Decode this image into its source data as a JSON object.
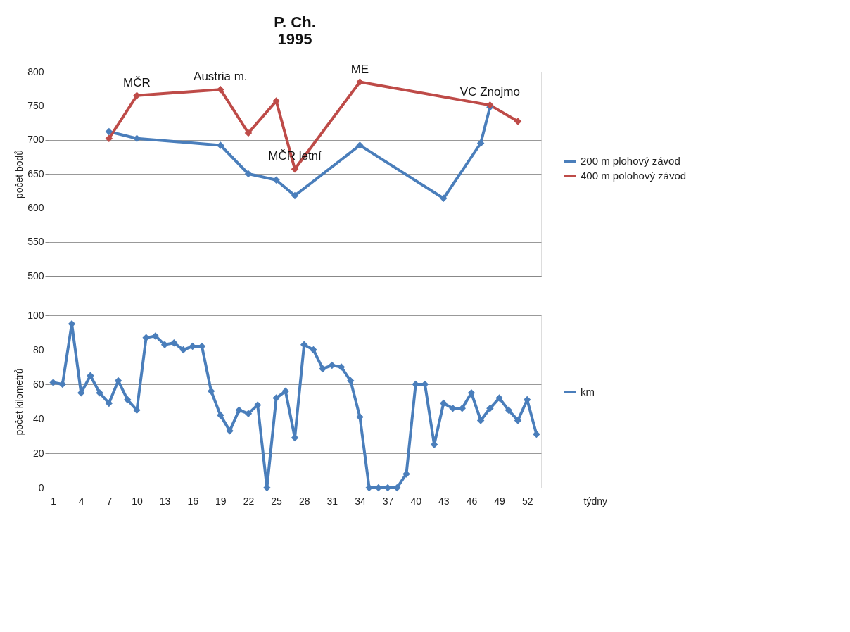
{
  "chart_data": [
    {
      "type": "line",
      "title": "P. Ch.\n1995",
      "ylabel": "počet bodů",
      "ylim": [
        500,
        800
      ],
      "yticks": [
        500,
        550,
        600,
        650,
        700,
        750,
        800
      ],
      "tick_labels": "y",
      "grid": "y",
      "legend": "right",
      "marker": "diamond",
      "line_style": "solid",
      "categories": [
        null,
        null,
        null,
        null,
        null,
        null,
        null,
        null,
        null,
        null,
        null,
        null,
        null,
        null,
        null,
        null,
        null,
        null,
        null,
        null,
        null,
        null,
        null,
        null,
        null,
        null,
        null,
        null,
        null,
        null,
        null,
        null,
        null,
        null,
        null,
        null,
        null,
        null,
        null,
        null,
        null,
        null,
        null,
        null,
        null,
        null,
        null,
        null,
        null,
        null,
        null,
        null,
        null
      ],
      "series": [
        {
          "name": "200 m plohový závod",
          "color": "#4a7ebb",
          "values": [
            null,
            null,
            null,
            null,
            null,
            null,
            712,
            null,
            null,
            702,
            null,
            null,
            null,
            null,
            null,
            null,
            null,
            null,
            692,
            null,
            null,
            650,
            null,
            null,
            641,
            null,
            618,
            null,
            null,
            null,
            null,
            null,
            null,
            692,
            null,
            null,
            null,
            null,
            null,
            null,
            null,
            null,
            614,
            null,
            null,
            null,
            695,
            748,
            null,
            null,
            null,
            null,
            null
          ]
        },
        {
          "name": "400 m polohový závod",
          "color": "#be4b48",
          "values": [
            null,
            null,
            null,
            null,
            null,
            null,
            702,
            null,
            null,
            765,
            null,
            null,
            null,
            null,
            null,
            null,
            null,
            null,
            774,
            null,
            null,
            710,
            null,
            null,
            757,
            null,
            657,
            null,
            null,
            null,
            null,
            null,
            null,
            785,
            null,
            null,
            null,
            null,
            null,
            null,
            null,
            null,
            null,
            null,
            null,
            null,
            null,
            751,
            null,
            null,
            727,
            null,
            null
          ]
        }
      ],
      "annotations": [
        {
          "text": "MČR",
          "y": 765
        },
        {
          "text": "Austria m.",
          "y": 774
        },
        {
          "text": "MČR letní",
          "y": 657
        },
        {
          "text": "ME",
          "y": 785
        },
        {
          "text": "VC Znojmo",
          "y": 751
        }
      ]
    },
    {
      "type": "line",
      "xlabel": "týdny",
      "ylabel": "počet kilometrů",
      "ylim": [
        0,
        100
      ],
      "yticks": [
        0,
        20,
        40,
        60,
        80,
        100
      ],
      "grid": "y",
      "legend": "right",
      "marker": "diamond",
      "line_style": "solid",
      "categories": [
        "1",
        null,
        null,
        "4",
        null,
        null,
        "7",
        null,
        null,
        "10",
        null,
        null,
        "13",
        null,
        null,
        "16",
        null,
        null,
        "19",
        null,
        null,
        "22",
        null,
        null,
        "25",
        null,
        null,
        "28",
        null,
        null,
        "31",
        null,
        null,
        "34",
        null,
        null,
        "37",
        null,
        null,
        "40",
        null,
        null,
        "43",
        null,
        null,
        "46",
        null,
        null,
        "49",
        null,
        null,
        "52",
        null
      ],
      "series": [
        {
          "name": "km",
          "color": "#4a7ebb",
          "values": [
            61,
            60,
            95,
            55,
            65,
            55,
            49,
            62,
            51,
            45,
            87,
            88,
            83,
            84,
            80,
            82,
            82,
            56,
            42,
            33,
            45,
            43,
            48,
            0,
            52,
            56,
            29,
            83,
            80,
            69,
            71,
            70,
            62,
            41,
            0,
            0,
            0,
            0,
            8,
            60,
            60,
            25,
            49,
            46,
            46,
            55,
            39,
            46,
            52,
            45,
            39,
            51,
            31
          ]
        }
      ]
    }
  ]
}
